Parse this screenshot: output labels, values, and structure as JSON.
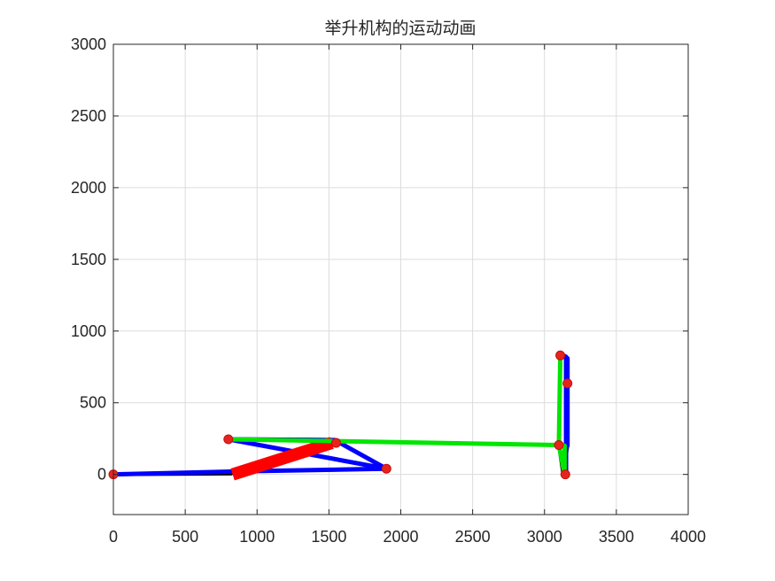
{
  "chart_data": {
    "type": "line",
    "title": "举升机构的运动动画",
    "xlabel": "",
    "ylabel": "",
    "xlim": [
      0,
      4000
    ],
    "ylim": [
      -280,
      3000
    ],
    "x_ticks": [
      0,
      500,
      1000,
      1500,
      2000,
      2500,
      3000,
      3500,
      4000
    ],
    "y_ticks": [
      0,
      500,
      1000,
      1500,
      2000,
      2500,
      3000
    ],
    "grid": true,
    "legend": "none",
    "colors": {
      "blue_links": "#0000ff",
      "green_links": "#00e600",
      "red_cylinder": "#ff0000",
      "black_links": "#000000",
      "joint_marker": "#e8231e"
    },
    "series": [
      {
        "color": "#000000",
        "width": 4,
        "x": [
          0,
          820
        ],
        "y": [
          0,
          5
        ]
      },
      {
        "color": "#0000ff",
        "width": 5,
        "x": [
          0,
          820,
          1900,
          820
        ],
        "y": [
          0,
          20,
          40,
          20
        ]
      },
      {
        "color": "#0000ff",
        "width": 5,
        "x": [
          820,
          1540,
          1900,
          800,
          1540
        ],
        "y": [
          20,
          240,
          40,
          245,
          240
        ]
      },
      {
        "color": "#ff0000",
        "width": 14,
        "x": [
          830,
          1520
        ],
        "y": [
          0,
          220
        ]
      },
      {
        "color": "#00e600",
        "width": 5,
        "x": [
          800,
          3100
        ],
        "y": [
          245,
          205
        ]
      },
      {
        "color": "#000000",
        "width": 4,
        "x": [
          3100,
          3160,
          3130
        ],
        "y": [
          205,
          200,
          0
        ]
      },
      {
        "color": "#000000",
        "width": 4,
        "x": [
          3100,
          3130
        ],
        "y": [
          205,
          0
        ]
      },
      {
        "color": "#0000ff",
        "width": 5,
        "x": [
          3150,
          3150,
          3130,
          3160,
          3160
        ],
        "y": [
          0,
          820,
          830,
          810,
          200
        ]
      },
      {
        "color": "#00e600",
        "width": 5,
        "x": [
          3110,
          3100,
          3140,
          3140
        ],
        "y": [
          830,
          205,
          0,
          200
        ]
      }
    ],
    "joints": [
      {
        "x": 0,
        "y": 0
      },
      {
        "x": 800,
        "y": 245
      },
      {
        "x": 1550,
        "y": 220
      },
      {
        "x": 1900,
        "y": 40
      },
      {
        "x": 3110,
        "y": 830
      },
      {
        "x": 3160,
        "y": 635
      },
      {
        "x": 3145,
        "y": 0
      },
      {
        "x": 3100,
        "y": 205
      }
    ]
  }
}
